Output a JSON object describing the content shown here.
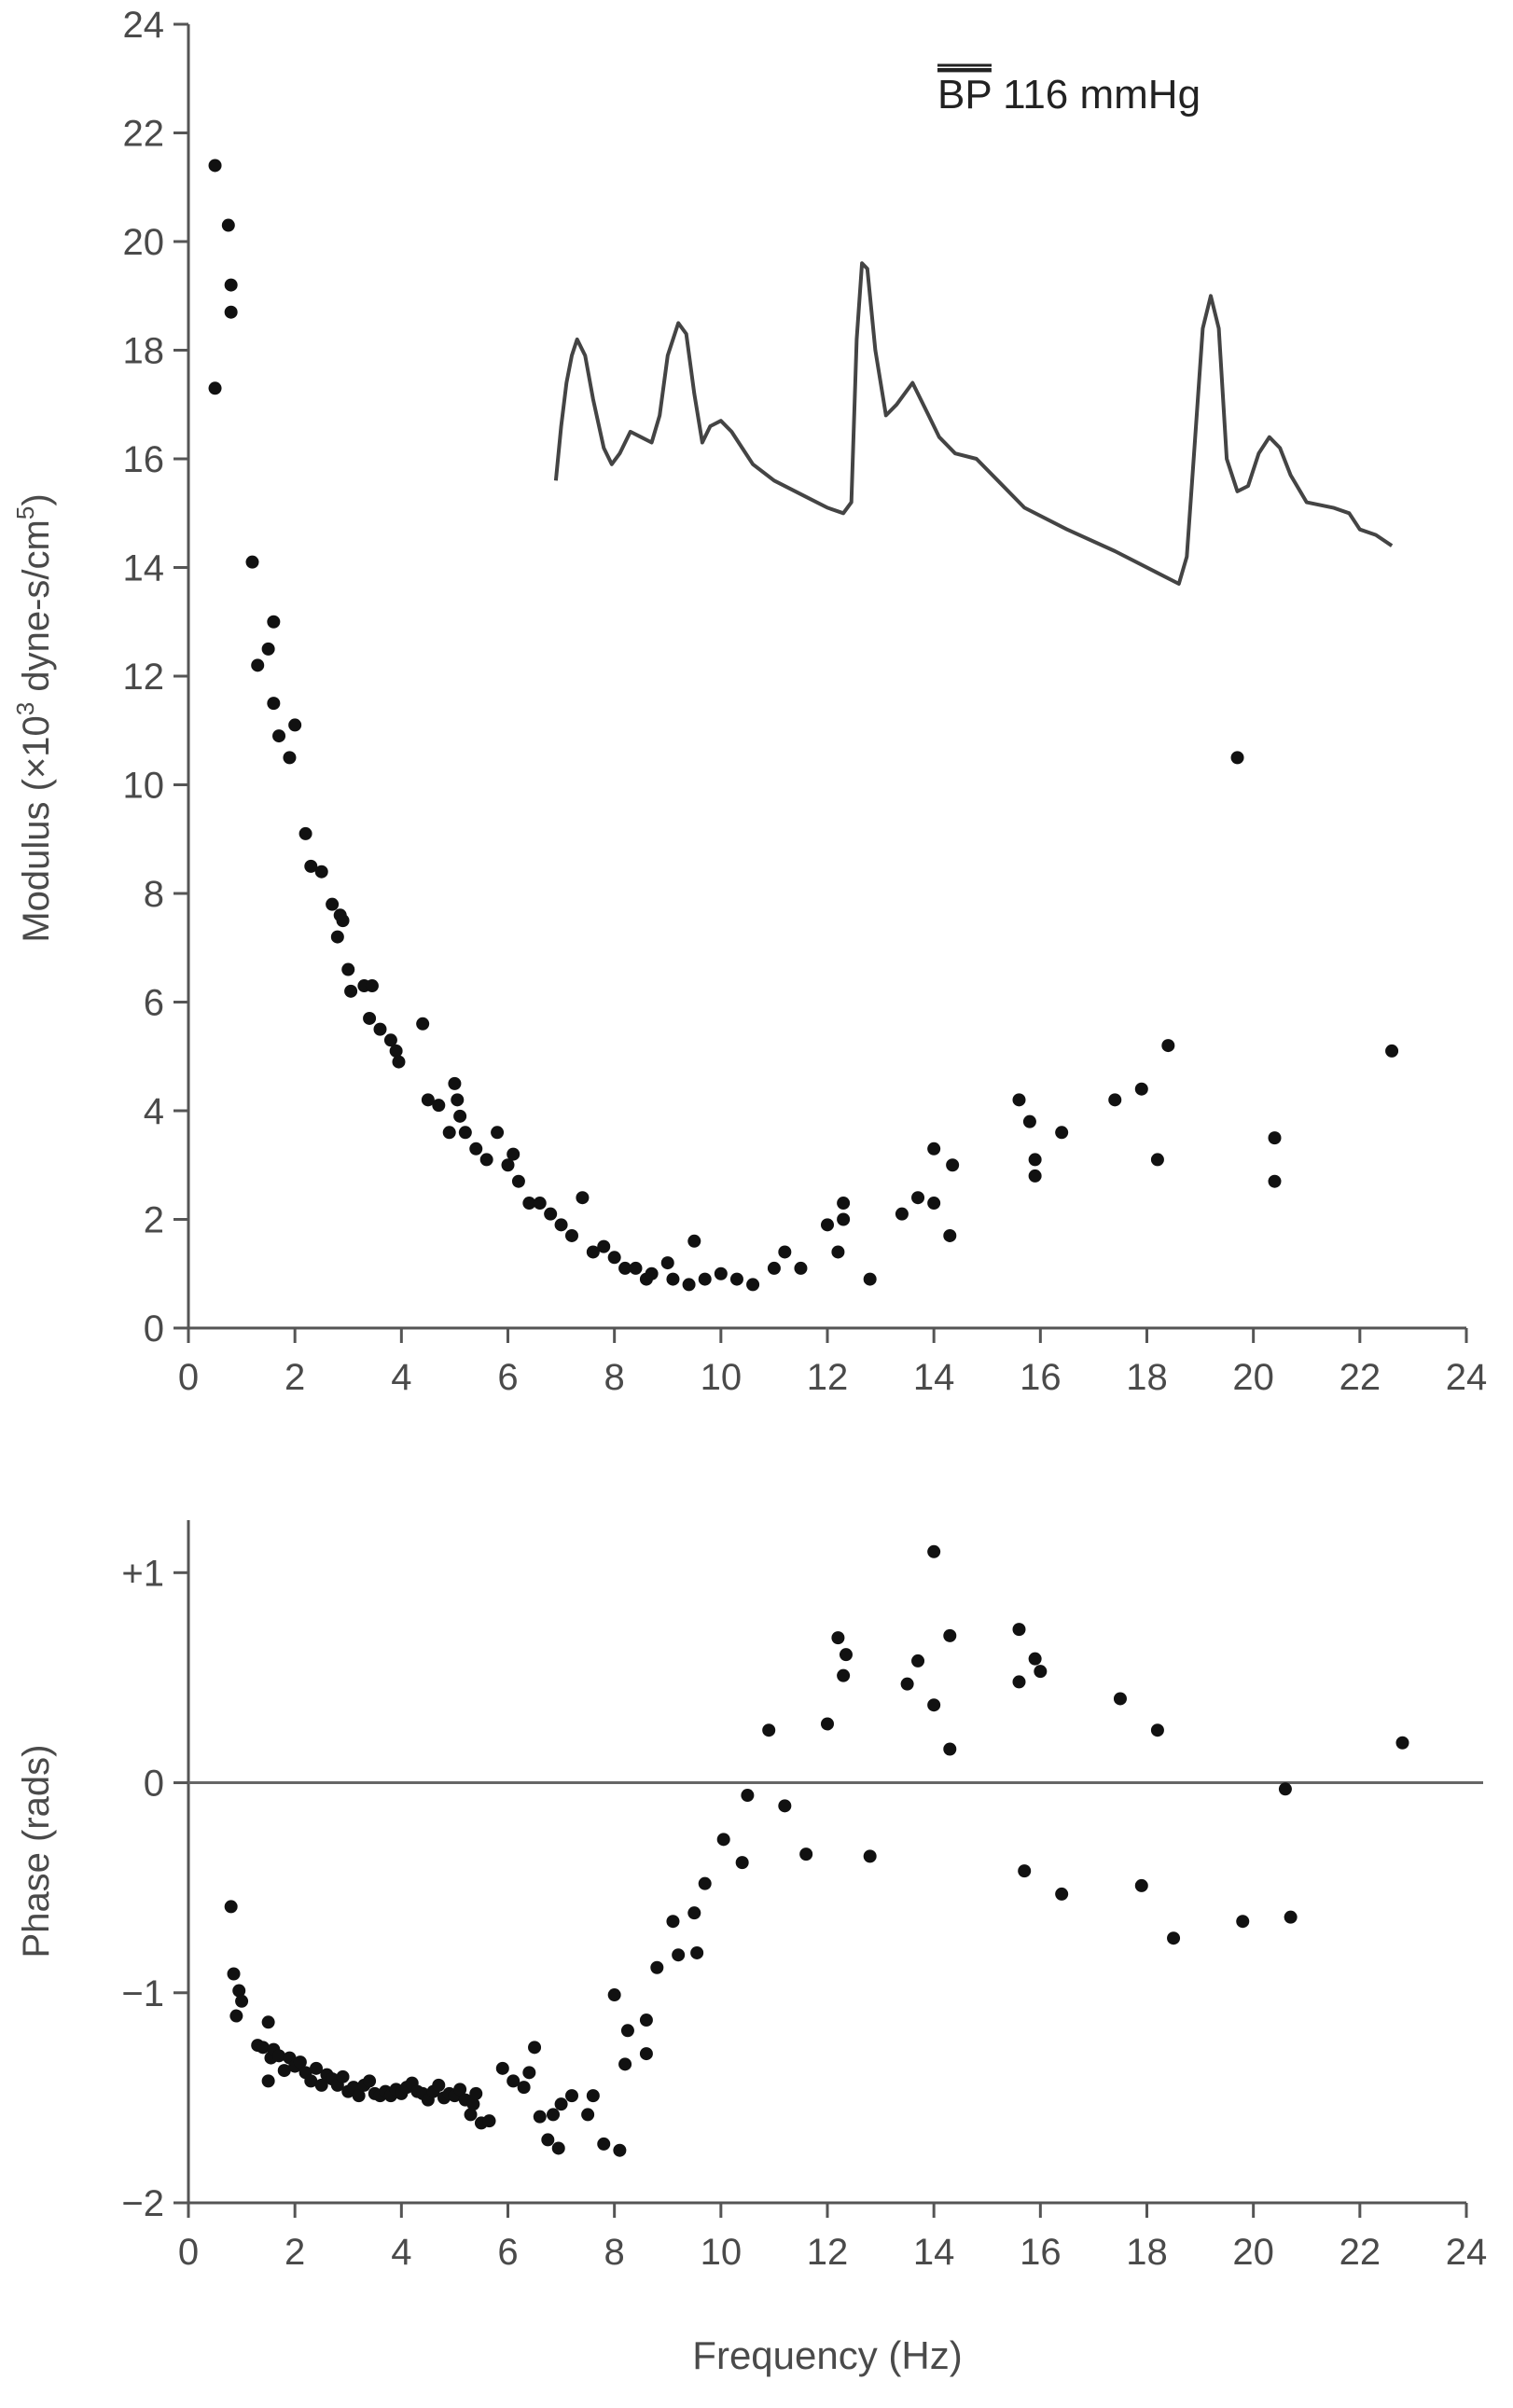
{
  "chart_data": [
    {
      "type": "scatter",
      "title": "",
      "xlabel": "",
      "ylabel": "Modulus (×10",
      "ylabel_sup1": "3",
      "ylabel_mid": " dyne-s/cm",
      "ylabel_sup2": "5",
      "ylabel_end": ")",
      "xlim": [
        0,
        24
      ],
      "ylim": [
        0,
        24
      ],
      "xticks": [
        "0",
        "2",
        "4",
        "6",
        "8",
        "10",
        "12",
        "14",
        "16",
        "18",
        "20",
        "22",
        "24"
      ],
      "yticks": [
        "0",
        "2",
        "4",
        "6",
        "8",
        "10",
        "12",
        "14",
        "16",
        "18",
        "20",
        "22",
        "24"
      ],
      "grid": false,
      "annotation": {
        "bp_bar_text": "BP",
        "bp_rest_text": " 116 mmHg"
      },
      "points": [
        [
          0.5,
          21.4
        ],
        [
          0.75,
          20.3
        ],
        [
          0.8,
          19.2
        ],
        [
          0.8,
          18.7
        ],
        [
          0.5,
          17.3
        ],
        [
          1.2,
          14.1
        ],
        [
          1.3,
          12.2
        ],
        [
          1.5,
          12.5
        ],
        [
          1.6,
          13.0
        ],
        [
          1.6,
          11.5
        ],
        [
          1.7,
          10.9
        ],
        [
          1.9,
          10.5
        ],
        [
          2.0,
          11.1
        ],
        [
          2.2,
          9.1
        ],
        [
          2.3,
          8.5
        ],
        [
          2.5,
          8.4
        ],
        [
          2.7,
          7.8
        ],
        [
          2.8,
          7.2
        ],
        [
          2.85,
          7.6
        ],
        [
          2.9,
          7.5
        ],
        [
          3.0,
          6.6
        ],
        [
          3.05,
          6.2
        ],
        [
          3.3,
          6.3
        ],
        [
          3.45,
          6.3
        ],
        [
          3.4,
          5.7
        ],
        [
          3.6,
          5.5
        ],
        [
          3.8,
          5.3
        ],
        [
          3.9,
          5.1
        ],
        [
          3.95,
          4.9
        ],
        [
          4.4,
          5.6
        ],
        [
          4.5,
          4.2
        ],
        [
          4.7,
          4.1
        ],
        [
          4.9,
          3.6
        ],
        [
          5.0,
          4.5
        ],
        [
          5.05,
          4.2
        ],
        [
          5.1,
          3.9
        ],
        [
          5.2,
          3.6
        ],
        [
          5.4,
          3.3
        ],
        [
          5.6,
          3.1
        ],
        [
          5.8,
          3.6
        ],
        [
          6.0,
          3.0
        ],
        [
          6.1,
          3.2
        ],
        [
          6.2,
          2.7
        ],
        [
          6.4,
          2.3
        ],
        [
          6.6,
          2.3
        ],
        [
          6.8,
          2.1
        ],
        [
          7.0,
          1.9
        ],
        [
          7.2,
          1.7
        ],
        [
          7.4,
          2.4
        ],
        [
          7.6,
          1.4
        ],
        [
          7.8,
          1.5
        ],
        [
          8.0,
          1.3
        ],
        [
          8.2,
          1.1
        ],
        [
          8.4,
          1.1
        ],
        [
          8.6,
          0.9
        ],
        [
          8.7,
          1.0
        ],
        [
          9.0,
          1.2
        ],
        [
          9.1,
          0.9
        ],
        [
          9.4,
          0.8
        ],
        [
          9.5,
          1.6
        ],
        [
          9.7,
          0.9
        ],
        [
          10.0,
          1.0
        ],
        [
          10.3,
          0.9
        ],
        [
          10.6,
          0.8
        ],
        [
          11.0,
          1.1
        ],
        [
          11.2,
          1.4
        ],
        [
          11.5,
          1.1
        ],
        [
          12.0,
          1.9
        ],
        [
          12.2,
          1.4
        ],
        [
          12.3,
          2.3
        ],
        [
          12.3,
          2.0
        ],
        [
          12.8,
          0.9
        ],
        [
          13.4,
          2.1
        ],
        [
          13.7,
          2.4
        ],
        [
          14.0,
          3.3
        ],
        [
          14.0,
          2.3
        ],
        [
          14.3,
          1.7
        ],
        [
          14.35,
          3.0
        ],
        [
          15.6,
          4.2
        ],
        [
          15.8,
          3.8
        ],
        [
          15.9,
          3.1
        ],
        [
          15.9,
          2.8
        ],
        [
          16.4,
          3.6
        ],
        [
          17.4,
          4.2
        ],
        [
          17.9,
          4.4
        ],
        [
          18.2,
          3.1
        ],
        [
          18.4,
          5.2
        ],
        [
          19.7,
          10.5
        ],
        [
          20.4,
          3.5
        ],
        [
          20.4,
          2.7
        ],
        [
          22.6,
          5.1
        ]
      ],
      "inset_waveform": [
        [
          6.9,
          15.6
        ],
        [
          7.0,
          16.6
        ],
        [
          7.1,
          17.4
        ],
        [
          7.2,
          17.9
        ],
        [
          7.3,
          18.2
        ],
        [
          7.45,
          17.9
        ],
        [
          7.6,
          17.1
        ],
        [
          7.8,
          16.2
        ],
        [
          7.95,
          15.9
        ],
        [
          8.1,
          16.1
        ],
        [
          8.3,
          16.5
        ],
        [
          8.5,
          16.4
        ],
        [
          8.7,
          16.3
        ],
        [
          8.85,
          16.8
        ],
        [
          9.0,
          17.9
        ],
        [
          9.2,
          18.5
        ],
        [
          9.35,
          18.3
        ],
        [
          9.5,
          17.2
        ],
        [
          9.65,
          16.3
        ],
        [
          9.8,
          16.6
        ],
        [
          10.0,
          16.7
        ],
        [
          10.2,
          16.5
        ],
        [
          10.4,
          16.2
        ],
        [
          10.6,
          15.9
        ],
        [
          11.0,
          15.6
        ],
        [
          11.6,
          15.3
        ],
        [
          12.0,
          15.1
        ],
        [
          12.3,
          15.0
        ],
        [
          12.45,
          15.2
        ],
        [
          12.55,
          18.2
        ],
        [
          12.65,
          19.6
        ],
        [
          12.75,
          19.5
        ],
        [
          12.9,
          18.0
        ],
        [
          13.1,
          16.8
        ],
        [
          13.3,
          17.0
        ],
        [
          13.6,
          17.4
        ],
        [
          13.9,
          16.8
        ],
        [
          14.1,
          16.4
        ],
        [
          14.4,
          16.1
        ],
        [
          14.8,
          16.0
        ],
        [
          15.2,
          15.6
        ],
        [
          15.7,
          15.1
        ],
        [
          16.5,
          14.7
        ],
        [
          17.4,
          14.3
        ],
        [
          18.2,
          13.9
        ],
        [
          18.6,
          13.7
        ],
        [
          18.75,
          14.2
        ],
        [
          18.9,
          16.3
        ],
        [
          19.05,
          18.4
        ],
        [
          19.2,
          19.0
        ],
        [
          19.35,
          18.4
        ],
        [
          19.5,
          16.0
        ],
        [
          19.7,
          15.4
        ],
        [
          19.9,
          15.5
        ],
        [
          20.1,
          16.1
        ],
        [
          20.3,
          16.4
        ],
        [
          20.5,
          16.2
        ],
        [
          20.7,
          15.7
        ],
        [
          21.0,
          15.2
        ],
        [
          21.5,
          15.1
        ],
        [
          21.8,
          15.0
        ],
        [
          22.0,
          14.7
        ],
        [
          22.3,
          14.6
        ],
        [
          22.6,
          14.4
        ]
      ]
    },
    {
      "type": "scatter",
      "title": "",
      "xlabel": "Frequency (Hz)",
      "ylabel": "Phase (rads)",
      "xlim": [
        0,
        24
      ],
      "ylim": [
        -2,
        1.25
      ],
      "xticks": [
        "0",
        "2",
        "4",
        "6",
        "8",
        "10",
        "12",
        "14",
        "16",
        "18",
        "20",
        "22",
        "24"
      ],
      "yticks": [
        {
          "value": 1,
          "label": "+1"
        },
        {
          "value": 0,
          "label": "0"
        },
        {
          "value": -1,
          "label": "−1"
        },
        {
          "value": -2,
          "label": "−2"
        }
      ],
      "grid": false,
      "zero_line": true,
      "points": [
        [
          0.8,
          -0.59
        ],
        [
          0.85,
          -0.91
        ],
        [
          0.9,
          -1.11
        ],
        [
          0.95,
          -0.99
        ],
        [
          1.0,
          -1.04
        ],
        [
          1.3,
          -1.25
        ],
        [
          1.4,
          -1.26
        ],
        [
          1.5,
          -1.14
        ],
        [
          1.55,
          -1.31
        ],
        [
          1.6,
          -1.27
        ],
        [
          1.7,
          -1.3
        ],
        [
          1.5,
          -1.42
        ],
        [
          1.8,
          -1.37
        ],
        [
          1.9,
          -1.31
        ],
        [
          2.0,
          -1.35
        ],
        [
          2.1,
          -1.33
        ],
        [
          2.2,
          -1.38
        ],
        [
          2.3,
          -1.42
        ],
        [
          2.4,
          -1.36
        ],
        [
          2.5,
          -1.44
        ],
        [
          2.6,
          -1.39
        ],
        [
          2.7,
          -1.41
        ],
        [
          2.8,
          -1.44
        ],
        [
          2.9,
          -1.4
        ],
        [
          3.0,
          -1.47
        ],
        [
          3.1,
          -1.45
        ],
        [
          3.2,
          -1.49
        ],
        [
          3.3,
          -1.44
        ],
        [
          3.4,
          -1.42
        ],
        [
          3.5,
          -1.48
        ],
        [
          3.6,
          -1.49
        ],
        [
          3.7,
          -1.47
        ],
        [
          3.8,
          -1.49
        ],
        [
          3.9,
          -1.46
        ],
        [
          4.0,
          -1.48
        ],
        [
          4.1,
          -1.45
        ],
        [
          4.2,
          -1.43
        ],
        [
          4.3,
          -1.47
        ],
        [
          4.4,
          -1.48
        ],
        [
          4.5,
          -1.51
        ],
        [
          4.6,
          -1.47
        ],
        [
          4.7,
          -1.44
        ],
        [
          4.8,
          -1.5
        ],
        [
          4.9,
          -1.48
        ],
        [
          5.0,
          -1.49
        ],
        [
          5.1,
          -1.46
        ],
        [
          5.2,
          -1.51
        ],
        [
          5.3,
          -1.58
        ],
        [
          5.35,
          -1.53
        ],
        [
          5.4,
          -1.48
        ],
        [
          5.5,
          -1.62
        ],
        [
          5.65,
          -1.61
        ],
        [
          5.9,
          -1.36
        ],
        [
          6.1,
          -1.42
        ],
        [
          6.3,
          -1.45
        ],
        [
          6.4,
          -1.38
        ],
        [
          6.5,
          -1.26
        ],
        [
          6.6,
          -1.59
        ],
        [
          6.75,
          -1.7
        ],
        [
          6.85,
          -1.58
        ],
        [
          6.95,
          -1.74
        ],
        [
          7.0,
          -1.53
        ],
        [
          7.2,
          -1.49
        ],
        [
          7.5,
          -1.58
        ],
        [
          7.6,
          -1.49
        ],
        [
          7.8,
          -1.72
        ],
        [
          8.0,
          -1.01
        ],
        [
          8.1,
          -1.75
        ],
        [
          8.2,
          -1.34
        ],
        [
          8.25,
          -1.18
        ],
        [
          8.6,
          -1.29
        ],
        [
          8.6,
          -1.13
        ],
        [
          8.8,
          -0.88
        ],
        [
          9.1,
          -0.66
        ],
        [
          9.2,
          -0.82
        ],
        [
          9.5,
          -0.62
        ],
        [
          9.55,
          -0.81
        ],
        [
          9.7,
          -0.48
        ],
        [
          10.05,
          -0.27
        ],
        [
          10.4,
          -0.38
        ],
        [
          10.5,
          -0.06
        ],
        [
          10.9,
          0.25
        ],
        [
          11.2,
          -0.11
        ],
        [
          11.6,
          -0.34
        ],
        [
          12.0,
          0.28
        ],
        [
          12.2,
          0.69
        ],
        [
          12.3,
          0.51
        ],
        [
          12.35,
          0.61
        ],
        [
          12.8,
          -0.35
        ],
        [
          13.5,
          0.47
        ],
        [
          13.7,
          0.58
        ],
        [
          14.0,
          1.1
        ],
        [
          14.0,
          0.37
        ],
        [
          14.3,
          0.7
        ],
        [
          14.3,
          0.16
        ],
        [
          15.6,
          0.73
        ],
        [
          15.6,
          0.48
        ],
        [
          15.7,
          -0.42
        ],
        [
          15.9,
          0.59
        ],
        [
          16.0,
          0.53
        ],
        [
          16.4,
          -0.53
        ],
        [
          17.5,
          0.4
        ],
        [
          17.9,
          -0.49
        ],
        [
          18.2,
          0.25
        ],
        [
          18.5,
          -0.74
        ],
        [
          19.8,
          -0.66
        ],
        [
          20.6,
          -0.03
        ],
        [
          20.7,
          -0.64
        ],
        [
          22.8,
          0.19
        ]
      ]
    }
  ]
}
